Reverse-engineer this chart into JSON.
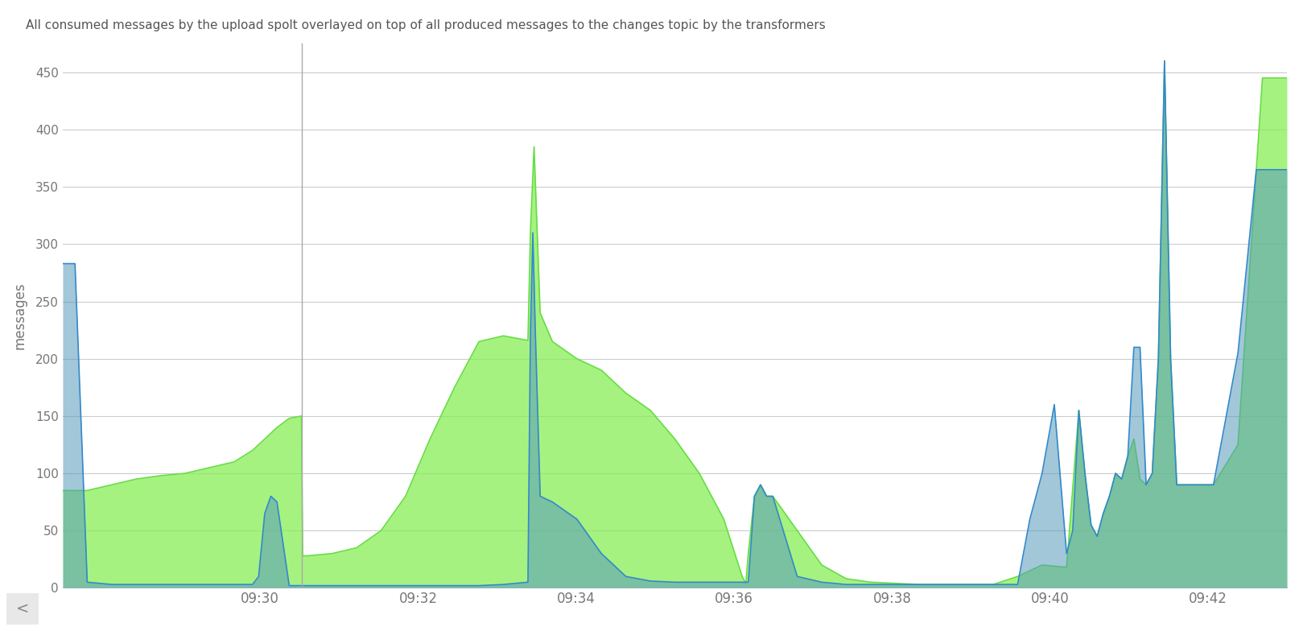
{
  "title": "All consumed messages by the upload spolt overlayed on top of all produced messages to the changes topic by the transformers",
  "ylabel": "messages",
  "background_color": "#ffffff",
  "plot_bg_color": "#ffffff",
  "grid_color": "#cccccc",
  "ylim": [
    0,
    475
  ],
  "yticks": [
    0,
    50,
    100,
    150,
    200,
    250,
    300,
    350,
    400,
    450
  ],
  "xtick_labels": [
    "09:30",
    "09:32",
    "09:34",
    "09:36",
    "09:38",
    "09:40",
    "09:42"
  ],
  "green_color": "#66dd44",
  "green_fill": "#88ee55",
  "blue_color": "#3388cc",
  "blue_fill": "#5599bb",
  "vertical_line_x": 0.195,
  "green_series": {
    "x": [
      0.0,
      0.02,
      0.04,
      0.06,
      0.08,
      0.1,
      0.12,
      0.14,
      0.155,
      0.165,
      0.175,
      0.185,
      0.195,
      0.196,
      0.2,
      0.22,
      0.24,
      0.26,
      0.28,
      0.3,
      0.32,
      0.34,
      0.36,
      0.38,
      0.382,
      0.385,
      0.39,
      0.4,
      0.42,
      0.44,
      0.46,
      0.48,
      0.5,
      0.52,
      0.54,
      0.555,
      0.558,
      0.56,
      0.565,
      0.57,
      0.575,
      0.58,
      0.6,
      0.62,
      0.64,
      0.66,
      0.68,
      0.7,
      0.72,
      0.74,
      0.76,
      0.78,
      0.8,
      0.82,
      0.83,
      0.835,
      0.84,
      0.845,
      0.85,
      0.855,
      0.86,
      0.865,
      0.87,
      0.875,
      0.88,
      0.885,
      0.89,
      0.895,
      0.9,
      0.905,
      0.91,
      0.92,
      0.94,
      0.96,
      0.98,
      1.0
    ],
    "y": [
      85,
      85,
      90,
      95,
      98,
      100,
      105,
      110,
      120,
      130,
      140,
      148,
      150,
      28,
      28,
      30,
      35,
      50,
      80,
      130,
      175,
      215,
      220,
      216,
      310,
      385,
      240,
      215,
      200,
      190,
      170,
      155,
      130,
      100,
      60,
      10,
      4,
      30,
      80,
      90,
      80,
      80,
      50,
      20,
      8,
      5,
      4,
      3,
      3,
      3,
      3,
      10,
      20,
      18,
      155,
      100,
      55,
      45,
      65,
      80,
      100,
      95,
      115,
      130,
      95,
      90,
      100,
      200,
      460,
      200,
      90,
      90,
      90,
      125,
      445,
      445
    ]
  },
  "blue_series": {
    "x": [
      0.0,
      0.01,
      0.02,
      0.04,
      0.06,
      0.08,
      0.1,
      0.12,
      0.14,
      0.155,
      0.16,
      0.165,
      0.17,
      0.175,
      0.185,
      0.195,
      0.196,
      0.2,
      0.22,
      0.24,
      0.26,
      0.28,
      0.3,
      0.32,
      0.34,
      0.36,
      0.38,
      0.382,
      0.384,
      0.386,
      0.39,
      0.4,
      0.42,
      0.44,
      0.46,
      0.48,
      0.5,
      0.52,
      0.54,
      0.555,
      0.558,
      0.56,
      0.565,
      0.57,
      0.575,
      0.58,
      0.6,
      0.62,
      0.64,
      0.66,
      0.68,
      0.7,
      0.72,
      0.74,
      0.76,
      0.78,
      0.79,
      0.8,
      0.81,
      0.82,
      0.825,
      0.83,
      0.835,
      0.84,
      0.845,
      0.85,
      0.855,
      0.86,
      0.865,
      0.87,
      0.875,
      0.88,
      0.885,
      0.89,
      0.895,
      0.9,
      0.905,
      0.91,
      0.92,
      0.94,
      0.96,
      0.975,
      0.985,
      1.0
    ],
    "y": [
      283,
      283,
      5,
      3,
      3,
      3,
      3,
      3,
      3,
      3,
      10,
      65,
      80,
      75,
      2,
      2,
      2,
      2,
      2,
      2,
      2,
      2,
      2,
      2,
      2,
      3,
      5,
      220,
      310,
      225,
      80,
      75,
      60,
      30,
      10,
      6,
      5,
      5,
      5,
      5,
      5,
      5,
      80,
      90,
      80,
      80,
      10,
      5,
      3,
      3,
      3,
      3,
      3,
      3,
      3,
      3,
      60,
      100,
      160,
      30,
      50,
      155,
      100,
      55,
      45,
      65,
      80,
      100,
      95,
      115,
      210,
      210,
      90,
      100,
      200,
      460,
      200,
      90,
      90,
      90,
      205,
      365,
      365,
      365
    ]
  }
}
